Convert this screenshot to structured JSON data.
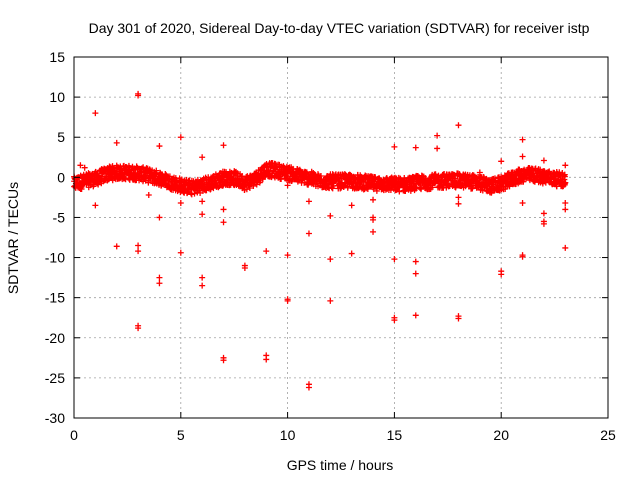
{
  "chart_data": {
    "type": "scatter",
    "title": "Day 301 of 2020, Sidereal Day-to-day VTEC variation (SDTVAR) for receiver istp",
    "xlabel": "GPS time / hours",
    "ylabel": "SDTVAR / TECUs",
    "xlim": [
      0,
      25
    ],
    "ylim": [
      -30,
      15
    ],
    "xticks": [
      "0",
      "5",
      "10",
      "15",
      "20",
      "25"
    ],
    "yticks": [
      "15",
      "10",
      "5",
      "0",
      "-5",
      "-10",
      "-15",
      "-20",
      "-25",
      "-30"
    ],
    "grid": true,
    "marker": "+",
    "color": "#ff0000",
    "band": [
      [
        0.0,
        -0.8
      ],
      [
        0.3,
        -0.6
      ],
      [
        0.6,
        -0.4
      ],
      [
        1.0,
        -0.2
      ],
      [
        1.5,
        0.4
      ],
      [
        2.0,
        0.6
      ],
      [
        2.5,
        0.6
      ],
      [
        3.0,
        0.5
      ],
      [
        3.5,
        0.2
      ],
      [
        4.0,
        -0.1
      ],
      [
        4.5,
        -0.6
      ],
      [
        5.0,
        -1.0
      ],
      [
        5.5,
        -1.3
      ],
      [
        6.0,
        -1.0
      ],
      [
        6.5,
        -0.6
      ],
      [
        7.0,
        -0.1
      ],
      [
        7.5,
        -0.1
      ],
      [
        8.0,
        -0.7
      ],
      [
        8.5,
        -0.2
      ],
      [
        9.0,
        1.0
      ],
      [
        9.5,
        0.8
      ],
      [
        10.0,
        0.5
      ],
      [
        10.5,
        0.2
      ],
      [
        11.0,
        -0.1
      ],
      [
        11.5,
        -0.5
      ],
      [
        12.0,
        -0.5
      ],
      [
        12.5,
        -0.5
      ],
      [
        13.0,
        -0.5
      ],
      [
        13.5,
        -0.6
      ],
      [
        14.0,
        -0.8
      ],
      [
        14.5,
        -0.8
      ],
      [
        15.0,
        -0.9
      ],
      [
        15.5,
        -0.9
      ],
      [
        16.0,
        -0.7
      ],
      [
        16.5,
        -0.6
      ],
      [
        17.0,
        -0.5
      ],
      [
        17.5,
        -0.4
      ],
      [
        18.0,
        -0.4
      ],
      [
        18.5,
        -0.5
      ],
      [
        19.0,
        -0.7
      ],
      [
        19.5,
        -1.1
      ],
      [
        20.0,
        -0.8
      ],
      [
        20.5,
        -0.2
      ],
      [
        21.0,
        0.3
      ],
      [
        21.5,
        0.3
      ],
      [
        22.0,
        0.1
      ],
      [
        22.5,
        -0.2
      ],
      [
        23.0,
        -0.3
      ]
    ],
    "outliers": [
      [
        0.3,
        1.5
      ],
      [
        0.5,
        1.2
      ],
      [
        1.0,
        -3.5
      ],
      [
        1.0,
        8.0
      ],
      [
        2.0,
        4.3
      ],
      [
        2.0,
        -8.6
      ],
      [
        3.0,
        -8.5
      ],
      [
        3.0,
        -9.2
      ],
      [
        3.0,
        -18.5
      ],
      [
        3.0,
        -18.8
      ],
      [
        3.0,
        10.2
      ],
      [
        3.0,
        10.4
      ],
      [
        3.5,
        -2.2
      ],
      [
        4.0,
        3.9
      ],
      [
        4.0,
        -5.0
      ],
      [
        4.0,
        -12.5
      ],
      [
        4.0,
        -13.2
      ],
      [
        5.0,
        5.0
      ],
      [
        5.0,
        -3.2
      ],
      [
        5.0,
        -9.4
      ],
      [
        6.0,
        2.5
      ],
      [
        6.0,
        -3.0
      ],
      [
        6.0,
        -4.6
      ],
      [
        6.0,
        -12.5
      ],
      [
        6.0,
        -13.5
      ],
      [
        7.0,
        4.0
      ],
      [
        7.0,
        -4.0
      ],
      [
        7.0,
        -5.6
      ],
      [
        7.0,
        -22.5
      ],
      [
        7.0,
        -22.8
      ],
      [
        8.0,
        -11.0
      ],
      [
        8.0,
        -11.3
      ],
      [
        9.0,
        -9.2
      ],
      [
        9.0,
        -22.2
      ],
      [
        9.0,
        -22.7
      ],
      [
        10.0,
        -9.7
      ],
      [
        10.0,
        -15.2
      ],
      [
        10.0,
        -15.4
      ],
      [
        10.0,
        -1.0
      ],
      [
        11.0,
        -3.0
      ],
      [
        11.0,
        -7.0
      ],
      [
        11.0,
        -25.8
      ],
      [
        11.0,
        -26.2
      ],
      [
        12.0,
        -4.8
      ],
      [
        12.0,
        -10.2
      ],
      [
        12.0,
        -15.4
      ],
      [
        13.0,
        -3.5
      ],
      [
        13.0,
        -9.5
      ],
      [
        14.0,
        -2.8
      ],
      [
        14.0,
        -5.0
      ],
      [
        14.0,
        -5.3
      ],
      [
        14.0,
        -6.8
      ],
      [
        15.0,
        3.8
      ],
      [
        15.0,
        -10.2
      ],
      [
        15.0,
        -17.5
      ],
      [
        15.0,
        -17.8
      ],
      [
        16.0,
        3.7
      ],
      [
        16.0,
        -10.5
      ],
      [
        16.0,
        -12.0
      ],
      [
        16.0,
        -17.2
      ],
      [
        17.0,
        5.2
      ],
      [
        17.0,
        3.6
      ],
      [
        18.0,
        6.5
      ],
      [
        18.0,
        -17.3
      ],
      [
        18.0,
        -17.6
      ],
      [
        18.0,
        -2.5
      ],
      [
        18.0,
        -3.3
      ],
      [
        19.0,
        0.6
      ],
      [
        19.5,
        -0.6
      ],
      [
        20.0,
        2.0
      ],
      [
        20.0,
        -11.7
      ],
      [
        20.0,
        -12.1
      ],
      [
        21.0,
        4.7
      ],
      [
        21.0,
        2.6
      ],
      [
        21.0,
        -3.2
      ],
      [
        21.0,
        -9.7
      ],
      [
        21.0,
        -9.9
      ],
      [
        22.0,
        2.1
      ],
      [
        22.0,
        -4.5
      ],
      [
        22.0,
        -5.5
      ],
      [
        22.0,
        -5.8
      ],
      [
        23.0,
        1.5
      ],
      [
        23.0,
        -3.2
      ],
      [
        23.0,
        -4.0
      ],
      [
        23.0,
        -8.8
      ]
    ]
  }
}
